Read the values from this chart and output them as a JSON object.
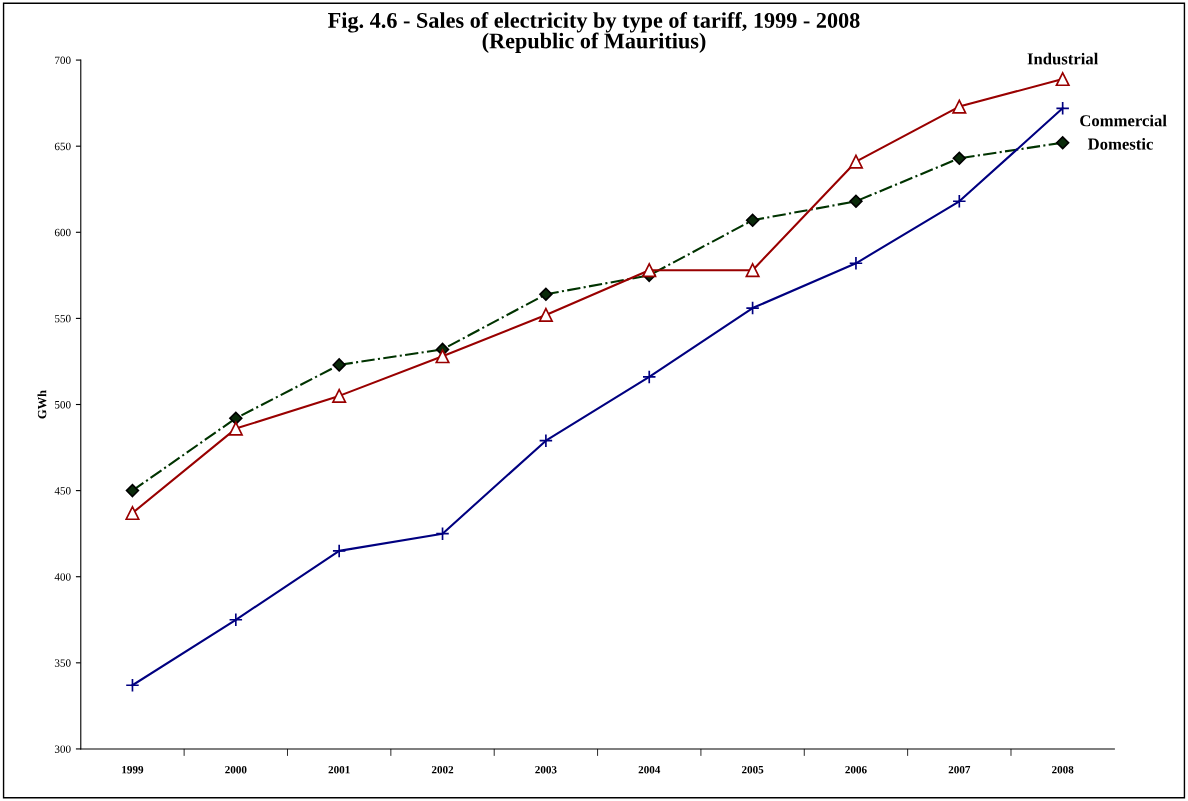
{
  "chart_data": {
    "type": "line",
    "title": "Fig. 4.6 - Sales of electricity by type of tariff, 1999 - 2008\n(Republic of Mauritius)",
    "ylabel": "GWh",
    "categories": [
      "1999",
      "2000",
      "2001",
      "2002",
      "2003",
      "2004",
      "2005",
      "2006",
      "2007",
      "2008"
    ],
    "series": [
      {
        "name": "Industrial",
        "color": "#990000",
        "marker": "triangle",
        "line_style": "solid",
        "values": [
          437,
          486,
          505,
          528,
          552,
          578,
          578,
          641,
          673,
          689
        ]
      },
      {
        "name": "Commercial",
        "color": "#000080",
        "marker": "cross",
        "line_style": "solid",
        "values": [
          337,
          375,
          415,
          425,
          479,
          516,
          556,
          582,
          618,
          672
        ]
      },
      {
        "name": "Domestic",
        "color": "#003300",
        "marker": "diamond",
        "line_style": "dashdot",
        "values": [
          450,
          492,
          523,
          532,
          564,
          575,
          607,
          618,
          643,
          652
        ]
      }
    ],
    "ylim": [
      300,
      700
    ],
    "yticks": [
      300,
      350,
      400,
      450,
      500,
      550,
      600,
      650,
      700
    ],
    "grid": false,
    "legend": false
  }
}
